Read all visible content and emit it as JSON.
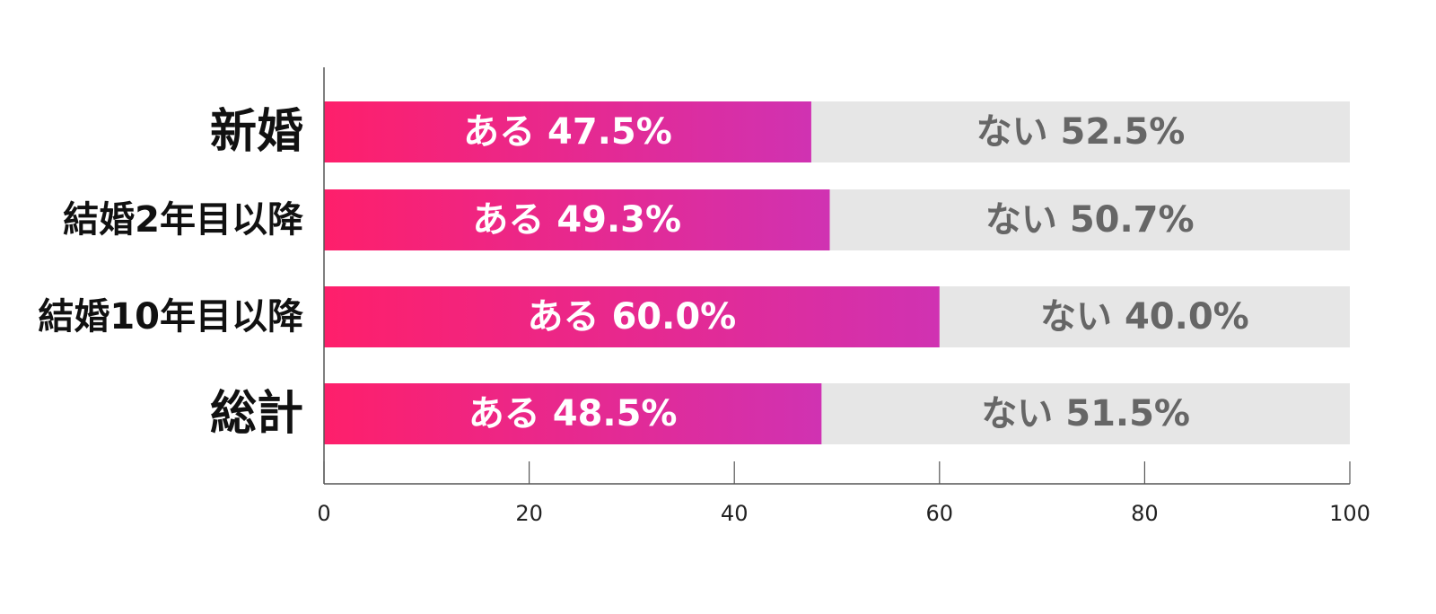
{
  "chart_data": {
    "type": "bar",
    "orientation": "horizontal",
    "stacked": true,
    "categories": [
      "新婚",
      "結婚2年目以降",
      "結婚10年目以降",
      "総計"
    ],
    "series": [
      {
        "name": "ある",
        "values": [
          47.5,
          49.3,
          60.0,
          48.5
        ]
      },
      {
        "name": "ない",
        "values": [
          52.5,
          50.7,
          40.0,
          51.5
        ]
      }
    ],
    "data_labels": {
      "yes": [
        "ある 47.5%",
        "ある 49.3%",
        "ある 60.0%",
        "ある 48.5%"
      ],
      "no": [
        "ない 52.5%",
        "ない 50.7%",
        "ない 40.0%",
        "ない 51.5%"
      ]
    },
    "x_ticks": [
      "0",
      "20",
      "40",
      "60",
      "80",
      "100"
    ],
    "xlim": [
      0,
      100
    ],
    "grid": false,
    "legend": "none",
    "colors": {
      "yes_start": "#fe1f6b",
      "yes_end": "#d032b2",
      "no": "#e6e6e6",
      "yes_label": "#ffffff",
      "no_label": "#666666",
      "axis": "#555555"
    }
  }
}
